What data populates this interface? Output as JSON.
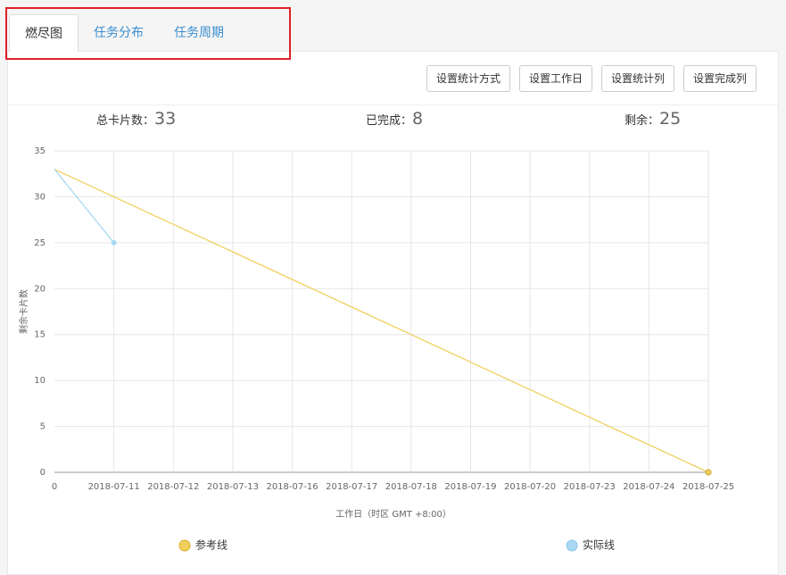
{
  "tabs": [
    "燃尽图",
    "任务分布",
    "任务周期"
  ],
  "buttons": [
    "设置统计方式",
    "设置工作日",
    "设置统计列",
    "设置完成列"
  ],
  "stats": [
    {
      "label": "总卡片数：",
      "value": 33
    },
    {
      "label": "已完成：",
      "value": 8
    },
    {
      "label": "剩余：",
      "value": 25
    }
  ],
  "chart_data": {
    "type": "line",
    "categories": [
      "0",
      "2018-07-11",
      "2018-07-12",
      "2018-07-13",
      "2018-07-16",
      "2018-07-17",
      "2018-07-18",
      "2018-07-19",
      "2018-07-20",
      "2018-07-23",
      "2018-07-24",
      "2018-07-25"
    ],
    "series": [
      {
        "name": "参考线",
        "color": "#f0cf5d",
        "values": [
          33,
          30,
          27,
          24,
          21,
          18,
          15,
          12,
          9,
          6,
          3,
          0
        ]
      },
      {
        "name": "实际线",
        "color": "#a9d9f2",
        "values": [
          33,
          25,
          null,
          null,
          null,
          null,
          null,
          null,
          null,
          null,
          null,
          null
        ]
      }
    ],
    "ylim": [
      0,
      35
    ],
    "yticks": [
      0,
      5,
      10,
      15,
      20,
      25,
      30,
      35
    ],
    "ylabel": "剩余卡片数",
    "xlabel": "工作日（时区 GMT +8:00）",
    "grid": true
  }
}
